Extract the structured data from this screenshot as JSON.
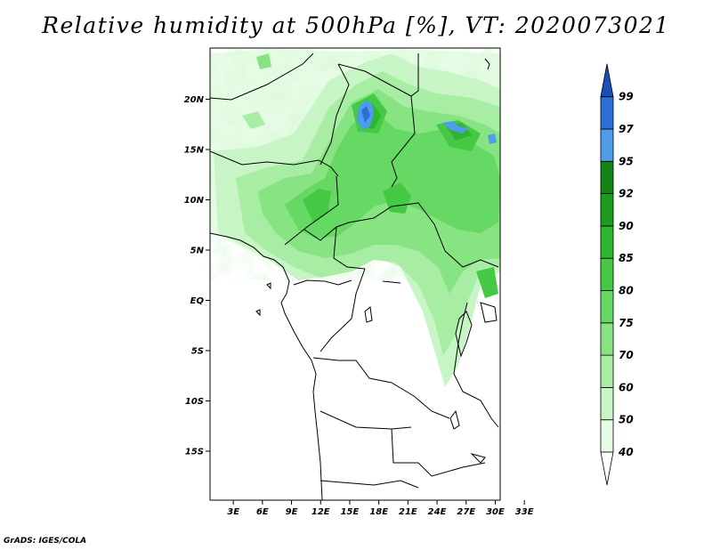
{
  "title": "Relative humidity at 500hPa [%], VT: 2020073021",
  "credit": "GrADS: IGES/COLA",
  "map": {
    "lat_labels": [
      "20N",
      "15N",
      "10N",
      "5N",
      "EQ",
      "5S",
      "10S",
      "15S"
    ],
    "lon_labels": [
      "3E",
      "6E",
      "9E",
      "12E",
      "15E",
      "18E",
      "21E",
      "24E",
      "27E",
      "30E",
      "33E"
    ]
  },
  "chart_data": {
    "type": "heatmap",
    "variable": "Relative humidity at 500hPa",
    "units": "%",
    "valid_time": "2020073021",
    "lon_ticks": [
      3,
      6,
      9,
      12,
      15,
      18,
      21,
      24,
      27,
      30,
      33
    ],
    "lat_ticks": [
      20,
      15,
      10,
      5,
      0,
      -5,
      -10,
      -15
    ],
    "colorbar": {
      "levels": [
        "40",
        "50",
        "60",
        "70",
        "75",
        "80",
        "85",
        "90",
        "92",
        "95",
        "97",
        "99"
      ],
      "colors": [
        "#ffffff",
        "#e6fce4",
        "#c8f5c5",
        "#a8eda4",
        "#88e482",
        "#66d864",
        "#45c944",
        "#2fb52f",
        "#1e9c1e",
        "#138413",
        "#4e9cea",
        "#2c6fd8",
        "#1a4fb5"
      ]
    }
  }
}
